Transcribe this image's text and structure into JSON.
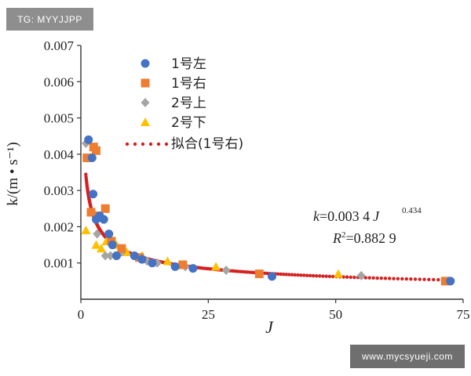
{
  "watermarks": {
    "top_left": "TG: MYYJJPP",
    "bottom_right": "www.mycsyueji.com"
  },
  "colors": {
    "series_1hao_zuo": "#4472c4",
    "series_1hao_you": "#ed7d31",
    "series_2hao_shang": "#a5a5a5",
    "series_2hao_xia": "#ffc000",
    "fit": "#d62020",
    "axis": "#333333"
  },
  "chart_data": {
    "type": "scatter",
    "xlabel": "J",
    "ylabel": "k/(m • s⁻¹)",
    "xlim": [
      0,
      75
    ],
    "ylim": [
      0,
      0.007
    ],
    "x_ticks": [
      0,
      25,
      50,
      75
    ],
    "y_ticks": [
      0.001,
      0.002,
      0.003,
      0.004,
      0.005,
      0.006,
      0.007
    ],
    "y_tick_labels": [
      "0.001",
      "0.002",
      "0.003",
      "0.004",
      "0.005",
      "0.006",
      "0.007"
    ],
    "legend_position": "top-left",
    "series": [
      {
        "name": "1号左",
        "marker": "circle",
        "points": [
          [
            1.5,
            0.0044
          ],
          [
            2.2,
            0.0039
          ],
          [
            2.4,
            0.0029
          ],
          [
            3.0,
            0.0022
          ],
          [
            3.7,
            0.0023
          ],
          [
            4.5,
            0.0022
          ],
          [
            5.5,
            0.0018
          ],
          [
            6.2,
            0.0015
          ],
          [
            7.0,
            0.0012
          ],
          [
            10.5,
            0.0012
          ],
          [
            12.0,
            0.0011
          ],
          [
            14.0,
            0.001
          ],
          [
            18.5,
            0.0009
          ],
          [
            22.0,
            0.00085
          ],
          [
            37.5,
            0.00063
          ],
          [
            72.5,
            0.0005
          ]
        ]
      },
      {
        "name": "1号右",
        "marker": "square",
        "points": [
          [
            1.2,
            0.0039
          ],
          [
            2.0,
            0.0024
          ],
          [
            2.5,
            0.0042
          ],
          [
            3.0,
            0.0041
          ],
          [
            3.5,
            0.0023
          ],
          [
            4.8,
            0.0025
          ],
          [
            6.0,
            0.0016
          ],
          [
            8.0,
            0.0014
          ],
          [
            11.5,
            0.00115
          ],
          [
            20.0,
            0.00095
          ],
          [
            35.0,
            0.0007
          ],
          [
            71.5,
            0.0005
          ]
        ]
      },
      {
        "name": "2号上",
        "marker": "diamond",
        "points": [
          [
            1.0,
            0.0043
          ],
          [
            3.2,
            0.0018
          ],
          [
            4.8,
            0.0012
          ],
          [
            5.8,
            0.0012
          ],
          [
            6.8,
            0.0012
          ],
          [
            8.0,
            0.0013
          ],
          [
            13.0,
            0.00105
          ],
          [
            15.0,
            0.001
          ],
          [
            20.5,
            0.0009
          ],
          [
            28.5,
            0.0008
          ],
          [
            55.0,
            0.00065
          ]
        ]
      },
      {
        "name": "2号下",
        "marker": "triangle",
        "points": [
          [
            1.0,
            0.0019
          ],
          [
            3.0,
            0.0015
          ],
          [
            4.0,
            0.0014
          ],
          [
            5.0,
            0.0016
          ],
          [
            7.0,
            0.0015
          ],
          [
            9.0,
            0.0013
          ],
          [
            12.0,
            0.0012
          ],
          [
            17.0,
            0.00105
          ],
          [
            26.5,
            0.0009
          ],
          [
            50.5,
            0.0007
          ]
        ]
      },
      {
        "name": "拟合(1号右)",
        "marker": "dotted-line",
        "fit": {
          "coefficient": 0.0034,
          "exponent": -0.434,
          "x_start": 0.97,
          "x_end": 72
        }
      }
    ],
    "annotations": {
      "equation_k": "k",
      "equation_value": "=0.003 4",
      "equation_J": "J",
      "equation_exponent": "0.434",
      "r2_R": "R",
      "r2_sup": "2",
      "r2_value": "=0.882 9"
    }
  }
}
